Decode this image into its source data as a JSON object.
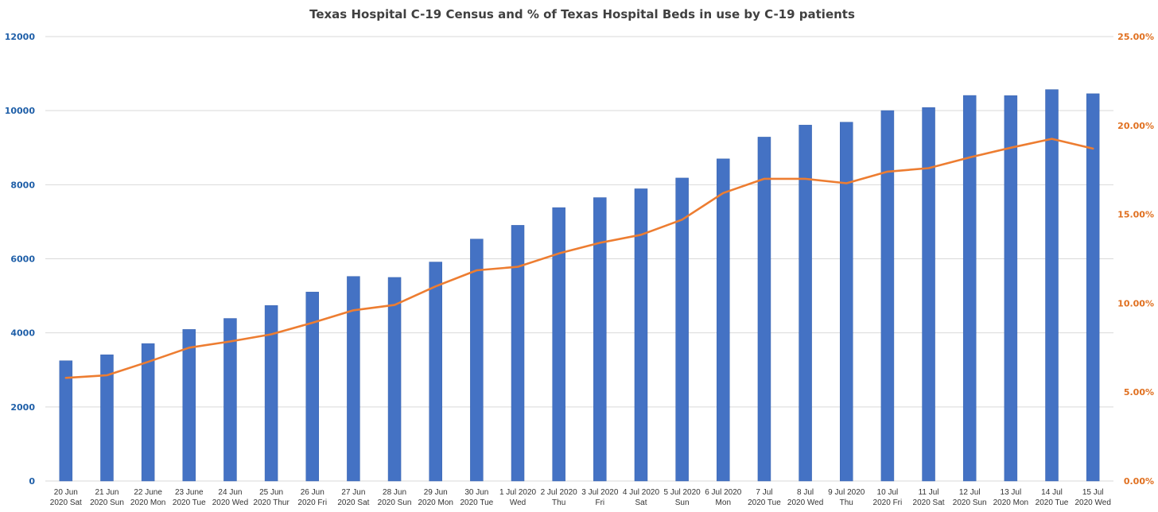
{
  "chart_data": {
    "type": "bar",
    "title": "Texas Hospital C-19 Census and % of Texas Hospital Beds in use by C-19 patients",
    "categories": [
      [
        "20 Jun",
        "2020 Sat"
      ],
      [
        "21 Jun",
        "2020 Sun"
      ],
      [
        "22 June",
        "2020 Mon"
      ],
      [
        "23 June",
        "2020 Tue"
      ],
      [
        "24 Jun",
        "2020 Wed"
      ],
      [
        "25 Jun",
        "2020 Thur"
      ],
      [
        "26 Jun",
        "2020 Fri"
      ],
      [
        "27 Jun",
        "2020 Sat"
      ],
      [
        "28 Jun",
        "2020 Sun"
      ],
      [
        "29 Jun",
        "2020 Mon"
      ],
      [
        "30 Jun",
        "2020 Tue"
      ],
      [
        "1 Jul 2020",
        "Wed"
      ],
      [
        "2 Jul 2020",
        "Thu"
      ],
      [
        "3 Jul 2020",
        "Fri"
      ],
      [
        "4 Jul 2020",
        "Sat"
      ],
      [
        "5 Jul 2020",
        "Sun"
      ],
      [
        "6 Jul 2020",
        "Mon"
      ],
      [
        "7 Jul",
        "2020 Tue"
      ],
      [
        "8 Jul",
        "2020 Wed"
      ],
      [
        "9 Jul 2020",
        "Thu"
      ],
      [
        "10 Jul",
        "2020 Fri"
      ],
      [
        "11 Jul",
        "2020 Sat"
      ],
      [
        "12 Jul",
        "2020 Sun"
      ],
      [
        "13 Jul",
        "2020 Mon"
      ],
      [
        "14 Jul",
        "2020 Tue"
      ],
      [
        "15 Jul",
        "2020 Wed"
      ]
    ],
    "series": [
      {
        "name": "Texas Hospital C-19 Census",
        "type": "bar",
        "axis": "left",
        "color": "#4472c4",
        "values": [
          3247,
          3409,
          3711,
          4092,
          4389,
          4739,
          5102,
          5523,
          5497,
          5913,
          6533,
          6904,
          7382,
          7652,
          7890,
          8181,
          8698,
          9286,
          9610,
          9689,
          10002,
          10083,
          10410,
          10405,
          10569,
          10457
        ]
      },
      {
        "name": "% of Texas Hospital Beds in use by C-19 patients",
        "type": "line",
        "axis": "right",
        "color": "#ed7d31",
        "values": [
          5.8,
          5.95,
          6.7,
          7.5,
          7.85,
          8.25,
          8.9,
          9.6,
          9.9,
          10.95,
          11.85,
          12.05,
          12.8,
          13.4,
          13.85,
          14.7,
          16.2,
          17.0,
          17.0,
          16.75,
          17.4,
          17.6,
          18.2,
          18.75,
          19.25,
          18.7
        ]
      }
    ],
    "y_left": {
      "min": 0,
      "max": 12000,
      "ticks": [
        "0",
        "2000",
        "4000",
        "6000",
        "8000",
        "10000",
        "12000"
      ]
    },
    "y_right": {
      "min": 0,
      "max": 25,
      "ticks": [
        "0.00%",
        "5.00%",
        "10.00%",
        "15.00%",
        "20.00%",
        "25.00%"
      ]
    },
    "grid": true,
    "legend": "none"
  }
}
